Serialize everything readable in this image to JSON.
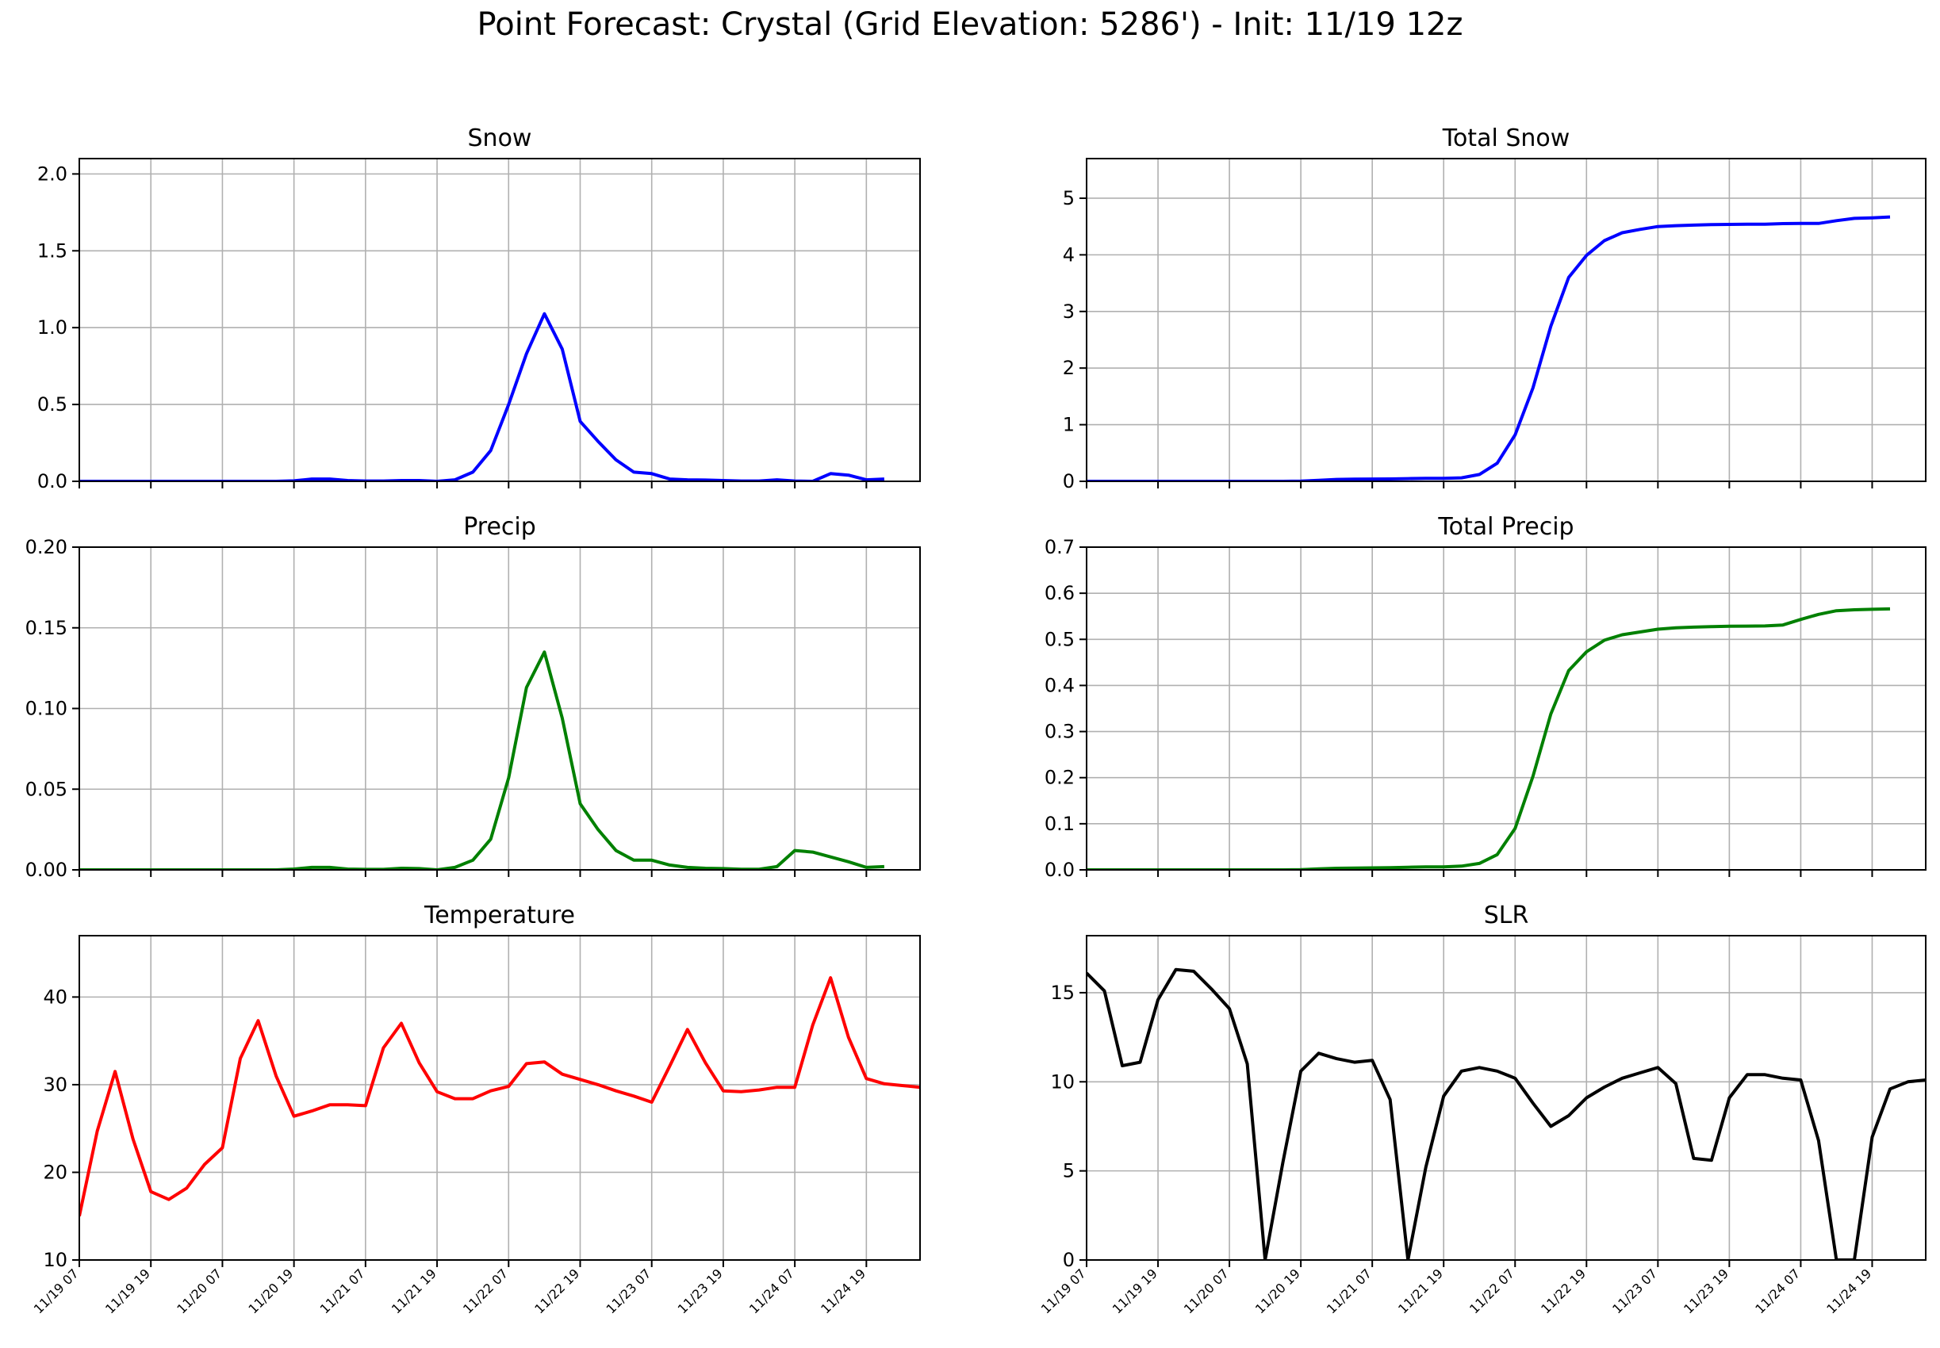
{
  "title": "Point Forecast: Crystal (Grid Elevation: 5286') - Init: 11/19 12z",
  "x_tick_labels": [
    "11/19 07",
    "11/19 19",
    "11/20 07",
    "11/20 19",
    "11/21 07",
    "11/21 19",
    "11/22 07",
    "11/22 19",
    "11/23 07",
    "11/23 19",
    "11/24 07",
    "11/24 19"
  ],
  "chart_data": [
    {
      "type": "line",
      "title": "Snow",
      "color": "#0000ff",
      "grid": true,
      "ylim": [
        0,
        2.1
      ],
      "yticks": [
        "0.0",
        "0.5",
        "1.0",
        "1.5",
        "2.0"
      ],
      "ytick_values": [
        0,
        0.5,
        1.0,
        1.5,
        2.0
      ],
      "values": [
        0,
        0,
        0,
        0,
        0,
        0,
        0,
        0,
        0,
        0,
        0,
        0,
        0.003,
        0.015,
        0.015,
        0.005,
        0.002,
        0.002,
        0.005,
        0.005,
        0,
        0.01,
        0.06,
        0.2,
        0.5,
        0.83,
        1.09,
        0.86,
        0.39,
        0.26,
        0.14,
        0.06,
        0.05,
        0.015,
        0.01,
        0.008,
        0.005,
        0.002,
        0.002,
        0.01,
        0.002,
        0,
        0.05,
        0.04,
        0.01,
        0.015
      ]
    },
    {
      "type": "line",
      "title": "Total Snow",
      "color": "#0000ff",
      "grid": true,
      "ylim": [
        0,
        5.7
      ],
      "yticks": [
        "0",
        "1",
        "2",
        "3",
        "4",
        "5"
      ],
      "ytick_values": [
        0,
        1,
        2,
        3,
        4,
        5
      ],
      "values": [
        0,
        0,
        0,
        0,
        0,
        0,
        0,
        0,
        0,
        0,
        0,
        0,
        0.003,
        0.018,
        0.033,
        0.038,
        0.04,
        0.042,
        0.047,
        0.052,
        0.052,
        0.062,
        0.12,
        0.32,
        0.82,
        1.65,
        2.74,
        3.6,
        3.99,
        4.25,
        4.39,
        4.45,
        4.5,
        4.515,
        4.525,
        4.533,
        4.538,
        4.54,
        4.542,
        4.552,
        4.554,
        4.554,
        4.604,
        4.644,
        4.654,
        4.669
      ]
    },
    {
      "type": "line",
      "title": "Precip",
      "color": "#008000",
      "grid": true,
      "ylim": [
        0,
        0.2
      ],
      "yticks": [
        "0.00",
        "0.05",
        "0.10",
        "0.15",
        "0.20"
      ],
      "ytick_values": [
        0,
        0.05,
        0.1,
        0.15,
        0.2
      ],
      "values": [
        0,
        0,
        0,
        0,
        0,
        0,
        0,
        0,
        0,
        0,
        0,
        0,
        0.0005,
        0.0015,
        0.0015,
        0.0005,
        0.0003,
        0.0003,
        0.001,
        0.0008,
        0,
        0.0015,
        0.006,
        0.019,
        0.057,
        0.113,
        0.135,
        0.094,
        0.041,
        0.025,
        0.012,
        0.006,
        0.006,
        0.003,
        0.0015,
        0.001,
        0.0008,
        0.0004,
        0.0004,
        0.002,
        0.012,
        0.011,
        0.008,
        0.005,
        0.0015,
        0.002
      ]
    },
    {
      "type": "line",
      "title": "Total Precip",
      "color": "#008000",
      "grid": true,
      "ylim": [
        0,
        0.7
      ],
      "yticks": [
        "0.0",
        "0.1",
        "0.2",
        "0.3",
        "0.4",
        "0.5",
        "0.6",
        "0.7"
      ],
      "ytick_values": [
        0,
        0.1,
        0.2,
        0.3,
        0.4,
        0.5,
        0.6,
        0.7
      ],
      "values": [
        0,
        0,
        0,
        0,
        0,
        0,
        0,
        0,
        0,
        0,
        0,
        0,
        0.0005,
        0.002,
        0.0035,
        0.004,
        0.0043,
        0.0046,
        0.0056,
        0.0064,
        0.0064,
        0.008,
        0.014,
        0.033,
        0.09,
        0.203,
        0.338,
        0.432,
        0.473,
        0.498,
        0.51,
        0.516,
        0.522,
        0.525,
        0.5265,
        0.5275,
        0.5283,
        0.5287,
        0.5291,
        0.5311,
        0.5431,
        0.5541,
        0.5621,
        0.5641,
        0.5651,
        0.5661
      ]
    },
    {
      "type": "line",
      "title": "Temperature",
      "color": "#ff0000",
      "grid": true,
      "ylim": [
        10,
        47
      ],
      "yticks": [
        "10",
        "20",
        "30",
        "40"
      ],
      "ytick_values": [
        10,
        20,
        30,
        40
      ],
      "values": [
        15,
        24.7,
        31.5,
        23.8,
        17.8,
        16.9,
        18.2,
        20.9,
        22.8,
        33,
        37.3,
        31,
        26.4,
        27,
        27.7,
        27.7,
        27.6,
        34.2,
        37,
        32.5,
        29.2,
        28.4,
        28.4,
        29.3,
        29.8,
        32.4,
        32.6,
        31.2,
        30.6,
        30,
        29.3,
        28.7,
        28,
        32.1,
        36.3,
        32.5,
        29.3,
        29.2,
        29.4,
        29.7,
        29.7,
        36.8,
        42.2,
        35.4,
        30.7,
        30.1,
        29.9,
        29.7
      ]
    },
    {
      "type": "line",
      "title": "SLR",
      "color": "#000000",
      "grid": true,
      "ylim": [
        0,
        18.2
      ],
      "yticks": [
        "0",
        "5",
        "10",
        "15"
      ],
      "ytick_values": [
        0,
        5,
        10,
        15
      ],
      "values": [
        16.1,
        15.1,
        10.9,
        11.1,
        14.6,
        16.3,
        16.2,
        15.2,
        14.1,
        11,
        0,
        5.5,
        10.6,
        11.6,
        11.3,
        11.1,
        11.2,
        9,
        0,
        5.2,
        9.2,
        10.6,
        10.8,
        10.6,
        10.2,
        8.8,
        7.5,
        8.1,
        9.1,
        9.7,
        10.2,
        10.5,
        10.8,
        9.9,
        5.7,
        5.6,
        9.1,
        10.4,
        10.4,
        10.2,
        10.1,
        6.7,
        0,
        0,
        6.9,
        9.6,
        10,
        10.1
      ]
    }
  ]
}
